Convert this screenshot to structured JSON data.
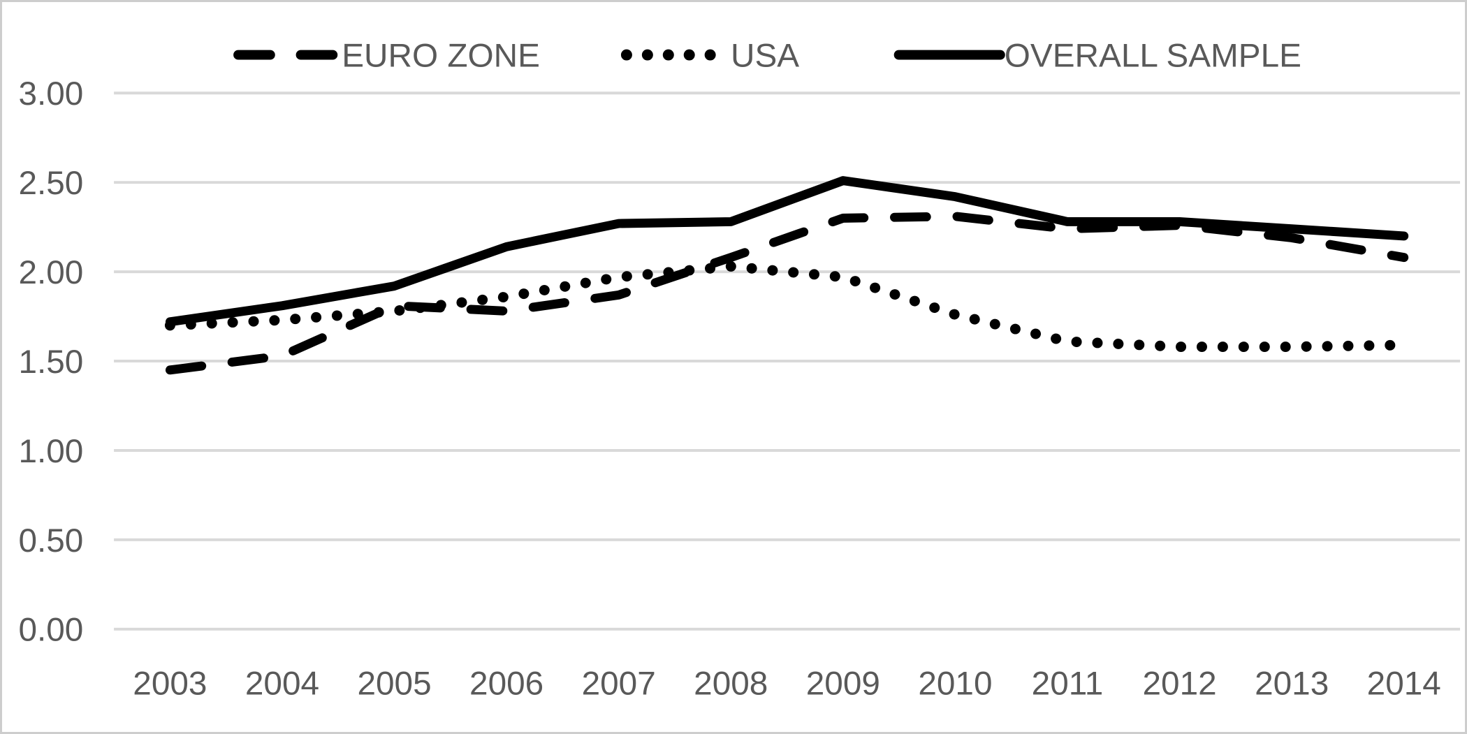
{
  "figure": {
    "background_color": "#ffffff",
    "border_color": "#cdcdcd",
    "text_color": "#595959",
    "grid_color": "#d9d9d9",
    "series_color": "#000000"
  },
  "legend": {
    "position": "top",
    "items": [
      {
        "label": "EURO ZONE",
        "line_style": "dashed"
      },
      {
        "label": "USA",
        "line_style": "dotted"
      },
      {
        "label": "OVERALL SAMPLE",
        "line_style": "solid"
      }
    ]
  },
  "axes": {
    "y_tick_labels": [
      "0.00",
      "0.50",
      "1.00",
      "1.50",
      "2.00",
      "2.50",
      "3.00"
    ],
    "y_tick_values": [
      0,
      0.5,
      1,
      1.5,
      2,
      2.5,
      3
    ],
    "x_tick_labels": [
      "2003",
      "2004",
      "2005",
      "2006",
      "2007",
      "2008",
      "2009",
      "2010",
      "2011",
      "2012",
      "2013",
      "2014"
    ]
  },
  "chart_data": {
    "type": "line",
    "title": "",
    "xlabel": "",
    "ylabel": "",
    "ylim": [
      0,
      3
    ],
    "ytick_step": 0.5,
    "grid": "horizontal",
    "legend_position": "top",
    "categories": [
      "2003",
      "2004",
      "2005",
      "2006",
      "2007",
      "2008",
      "2009",
      "2010",
      "2011",
      "2012",
      "2013",
      "2014"
    ],
    "series": [
      {
        "name": "EURO ZONE",
        "line_style": "dashed",
        "color": "#000000",
        "values": [
          1.45,
          1.53,
          1.81,
          1.78,
          1.87,
          2.08,
          2.3,
          2.31,
          2.24,
          2.26,
          2.19,
          2.08
        ]
      },
      {
        "name": "USA",
        "line_style": "dotted",
        "color": "#000000",
        "values": [
          1.7,
          1.73,
          1.78,
          1.86,
          1.97,
          2.03,
          1.97,
          1.76,
          1.61,
          1.58,
          1.58,
          1.59
        ]
      },
      {
        "name": "OVERALL SAMPLE",
        "line_style": "solid",
        "color": "#000000",
        "values": [
          1.72,
          1.81,
          1.92,
          2.14,
          2.27,
          2.28,
          2.51,
          2.42,
          2.28,
          2.28,
          2.24,
          2.2
        ]
      }
    ]
  }
}
